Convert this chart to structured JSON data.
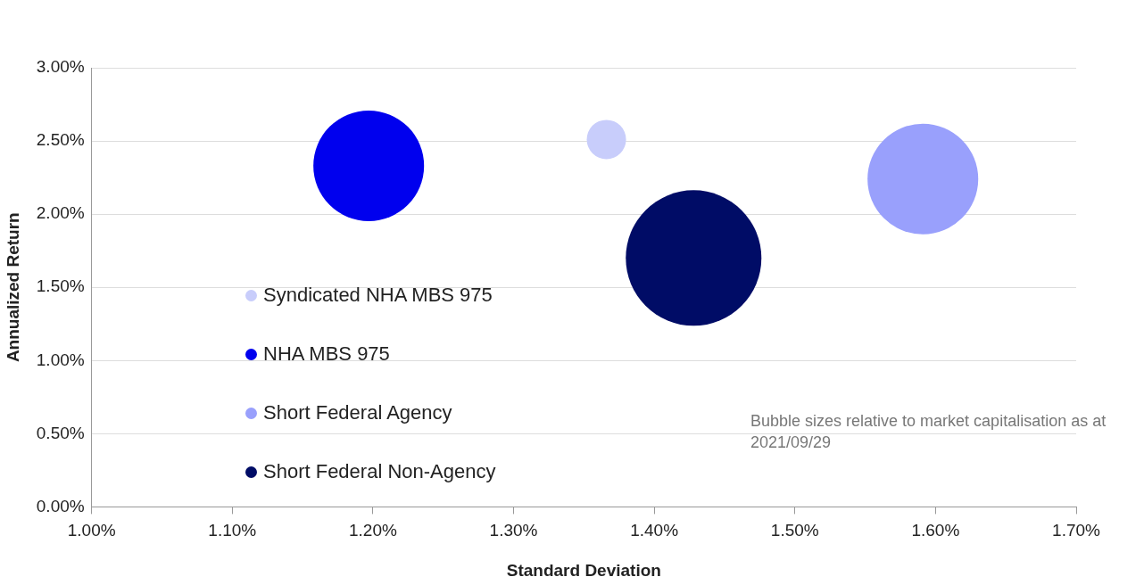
{
  "chart_data": {
    "type": "bubble",
    "xlabel": "Standard Deviation",
    "ylabel": "Annualized Return",
    "series": [
      {
        "name": "Syndicated NHA MBS 975",
        "color": "#c8cdfb",
        "x": [
          1.366
        ],
        "values": [
          2.51
        ],
        "sizes": [
          0.084
        ]
      },
      {
        "name": "NHA MBS 975",
        "color": "#0000ee",
        "x": [
          1.197
        ],
        "values": [
          2.33
        ],
        "sizes": [
          0.666
        ]
      },
      {
        "name": "Short Federal Agency",
        "color": "#99a0fc",
        "x": [
          1.591
        ],
        "values": [
          2.24
        ],
        "sizes": [
          0.666
        ]
      },
      {
        "name": "Short Federal Non-Agency",
        "color": "#000c66",
        "x": [
          1.428
        ],
        "values": [
          1.7
        ],
        "sizes": [
          1
        ]
      }
    ],
    "xlim": [
      1.0,
      1.7
    ],
    "xticks": [
      {
        "value": 1.0,
        "label": "1.00%"
      },
      {
        "value": 1.1,
        "label": "1.10%"
      },
      {
        "value": 1.2,
        "label": "1.20%"
      },
      {
        "value": 1.3,
        "label": "1.30%"
      },
      {
        "value": 1.4,
        "label": "1.40%"
      },
      {
        "value": 1.5,
        "label": "1.50%"
      },
      {
        "value": 1.6,
        "label": "1.60%"
      },
      {
        "value": 1.7,
        "label": "1.70%"
      }
    ],
    "ylim": [
      0,
      3.0
    ],
    "yticks": [
      {
        "value": 0,
        "label": "0.00%"
      },
      {
        "value": 0.5,
        "label": "0.50%"
      },
      {
        "value": 1.0,
        "label": "1.00%"
      },
      {
        "value": 1.5,
        "label": "1.50%"
      },
      {
        "value": 2.0,
        "label": "2.00%"
      },
      {
        "value": 2.5,
        "label": "2.50%"
      },
      {
        "value": 3.0,
        "label": "3.00%"
      }
    ],
    "grid": "y",
    "legend": "bottom left",
    "annotations": [
      "Bubble sizes relative to market capitalisation as at 2021/09/29"
    ]
  }
}
